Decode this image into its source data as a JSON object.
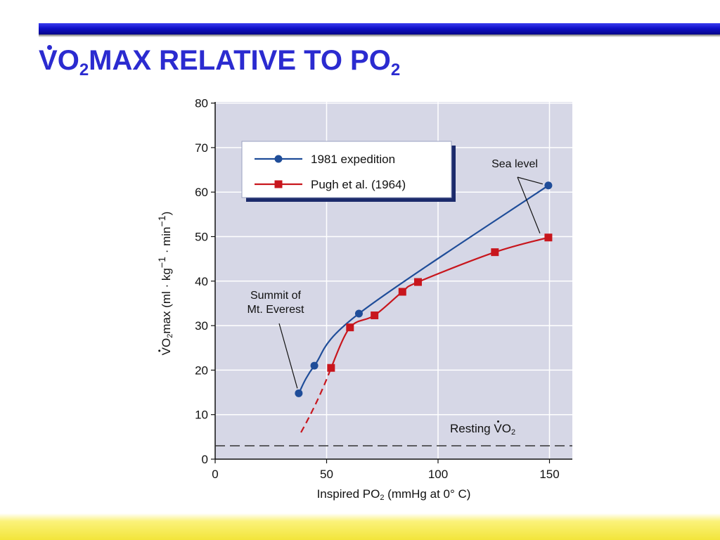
{
  "slide": {
    "title_dot_letter": "V",
    "title_part_1": "O",
    "title_sub_1": "2",
    "title_part_2": "MAX RELATIVE TO PO",
    "title_sub_2": "2"
  },
  "colors": {
    "title": "#2b2bd0",
    "plot_background": "#d6d7e6",
    "series_1981": "#1f4d99",
    "series_pugh": "#c8161d",
    "top_bar": "#1010c8",
    "bottom_band": "#f2e53a"
  },
  "chart_data": {
    "type": "line",
    "xlabel": {
      "prefix": "Inspired PO",
      "sub": "2",
      "suffix": " (mmHg at 0° C)"
    },
    "ylabel": {
      "dot_letter": "V",
      "part_1": "O",
      "sub": "2",
      "part_2": "max (ml · kg",
      "sup_1": "−1",
      "part_3": " · min",
      "sup_2": "−1",
      "part_4": ")"
    },
    "xlim": [
      0,
      160
    ],
    "ylim": [
      0,
      80
    ],
    "x_ticks": [
      0,
      50,
      100,
      150
    ],
    "y_ticks": [
      0,
      10,
      20,
      30,
      40,
      50,
      60,
      70,
      80
    ],
    "grid": true,
    "legend_position": "top-left",
    "series": [
      {
        "name": "1981 expedition",
        "marker": "circle",
        "points": [
          [
            37.5,
            14.8
          ],
          [
            44.5,
            21
          ],
          [
            64.5,
            32.7
          ],
          [
            149.5,
            61.5
          ]
        ]
      },
      {
        "name": "Pugh et al. (1964)",
        "marker": "square",
        "points": [
          [
            52,
            20.5
          ],
          [
            60.5,
            29.6
          ],
          [
            71.5,
            32.3
          ],
          [
            84,
            37.6
          ],
          [
            91,
            39.8
          ],
          [
            125.5,
            46.5
          ],
          [
            149.5,
            49.8
          ]
        ],
        "extrapolated_points": [
          [
            38.5,
            6
          ],
          [
            52,
            20.5
          ]
        ]
      }
    ],
    "reference_lines": [
      {
        "y": 3,
        "style": "dashed",
        "label_prefix": "Resting ",
        "label_dot_letter": "V",
        "label_part": "O",
        "label_sub": "2"
      }
    ],
    "annotations": [
      {
        "text_lines": [
          "Summit of",
          "Mt. Everest"
        ],
        "points_to": [
          37.5,
          14.8
        ]
      },
      {
        "text_lines": [
          "Sea level"
        ],
        "points_to": [
          [
            149.5,
            61.5
          ],
          [
            149.5,
            49.8
          ]
        ]
      }
    ]
  }
}
